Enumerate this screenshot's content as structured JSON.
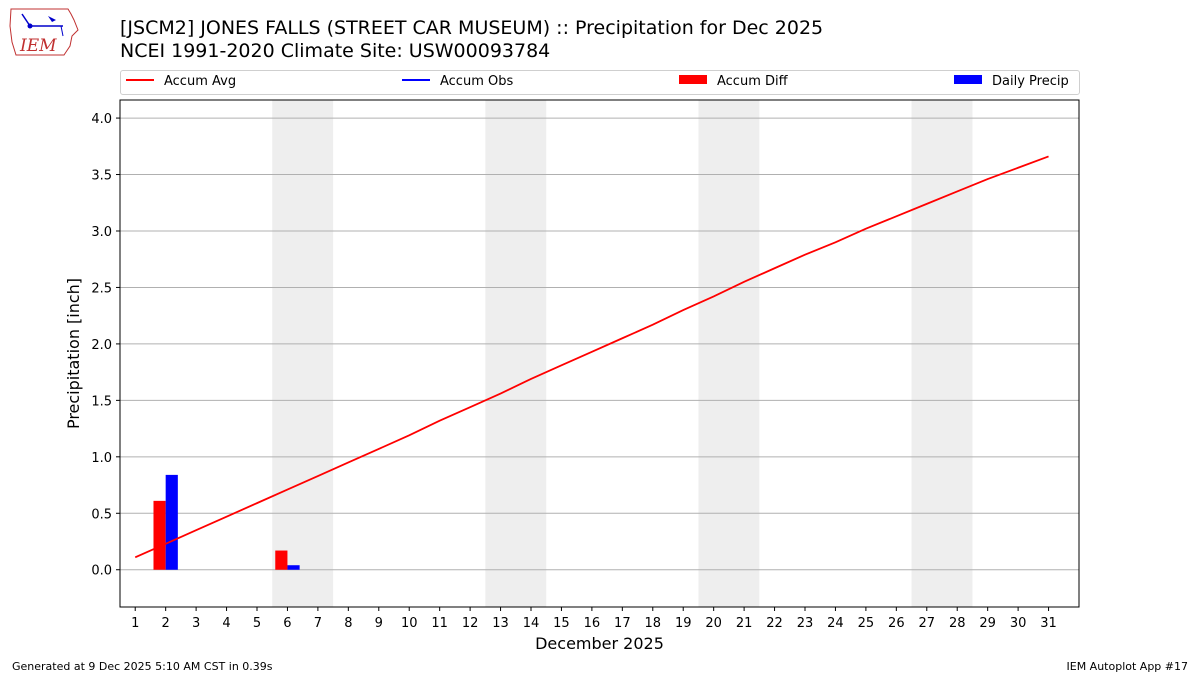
{
  "logo": {
    "text": "IEM",
    "icon": "iem-logo-iowa-icon"
  },
  "title": {
    "line1": "[JSCM2] JONES FALLS (STREET CAR MUSEUM) :: Precipitation for Dec 2025",
    "line2": "NCEI 1991-2020 Climate Site: USW00093784"
  },
  "legend": [
    {
      "label": "Accum Avg",
      "kind": "line",
      "color": "#ff0000"
    },
    {
      "label": "Accum Obs",
      "kind": "line",
      "color": "#0000ff"
    },
    {
      "label": "Accum Diff",
      "kind": "bar",
      "color": "#ff0000"
    },
    {
      "label": "Daily Precip",
      "kind": "bar",
      "color": "#0000ff"
    }
  ],
  "footer": {
    "left": "Generated at 9 Dec 2025 5:10 AM CST in 0.39s",
    "right": "IEM Autoplot App #17"
  },
  "chart_data": {
    "type": "line",
    "xlabel": "December 2025",
    "ylabel": "Precipitation [inch]",
    "xlim": [
      0.5,
      32.0
    ],
    "ylim": [
      -0.33,
      4.16
    ],
    "x_ticks": [
      1,
      2,
      3,
      4,
      5,
      6,
      7,
      8,
      9,
      10,
      11,
      12,
      13,
      14,
      15,
      16,
      17,
      18,
      19,
      20,
      21,
      22,
      23,
      24,
      25,
      26,
      27,
      28,
      29,
      30,
      31
    ],
    "y_ticks": [
      0.0,
      0.5,
      1.0,
      1.5,
      2.0,
      2.5,
      3.0,
      3.5,
      4.0
    ],
    "y_tick_labels": [
      "0.0",
      "0.5",
      "1.0",
      "1.5",
      "2.0",
      "2.5",
      "3.0",
      "3.5",
      "4.0"
    ],
    "grid": "horizontal",
    "weekend_shading": [
      [
        5.5,
        7.5
      ],
      [
        12.5,
        14.5
      ],
      [
        19.5,
        21.5
      ],
      [
        26.5,
        28.5
      ]
    ],
    "weekend_color": "#eeeeee",
    "series": [
      {
        "name": "Accum Avg",
        "type": "line",
        "color": "#ff0000",
        "x": [
          1,
          2,
          3,
          4,
          5,
          6,
          7,
          8,
          9,
          10,
          11,
          12,
          13,
          14,
          15,
          16,
          17,
          18,
          19,
          20,
          21,
          22,
          23,
          24,
          25,
          26,
          27,
          28,
          29,
          30,
          31
        ],
        "values": [
          0.11,
          0.23,
          0.35,
          0.47,
          0.59,
          0.71,
          0.83,
          0.95,
          1.07,
          1.19,
          1.32,
          1.44,
          1.56,
          1.69,
          1.81,
          1.93,
          2.05,
          2.17,
          2.3,
          2.42,
          2.55,
          2.67,
          2.79,
          2.9,
          3.02,
          3.13,
          3.24,
          3.35,
          3.46,
          3.56,
          3.66
        ]
      },
      {
        "name": "Accum Diff",
        "type": "bar",
        "color": "#ff0000",
        "x": [
          2,
          6
        ],
        "values": [
          0.61,
          0.17
        ]
      },
      {
        "name": "Daily Precip",
        "type": "bar",
        "color": "#0000ff",
        "x": [
          2,
          6
        ],
        "values": [
          0.84,
          0.04
        ]
      }
    ]
  }
}
